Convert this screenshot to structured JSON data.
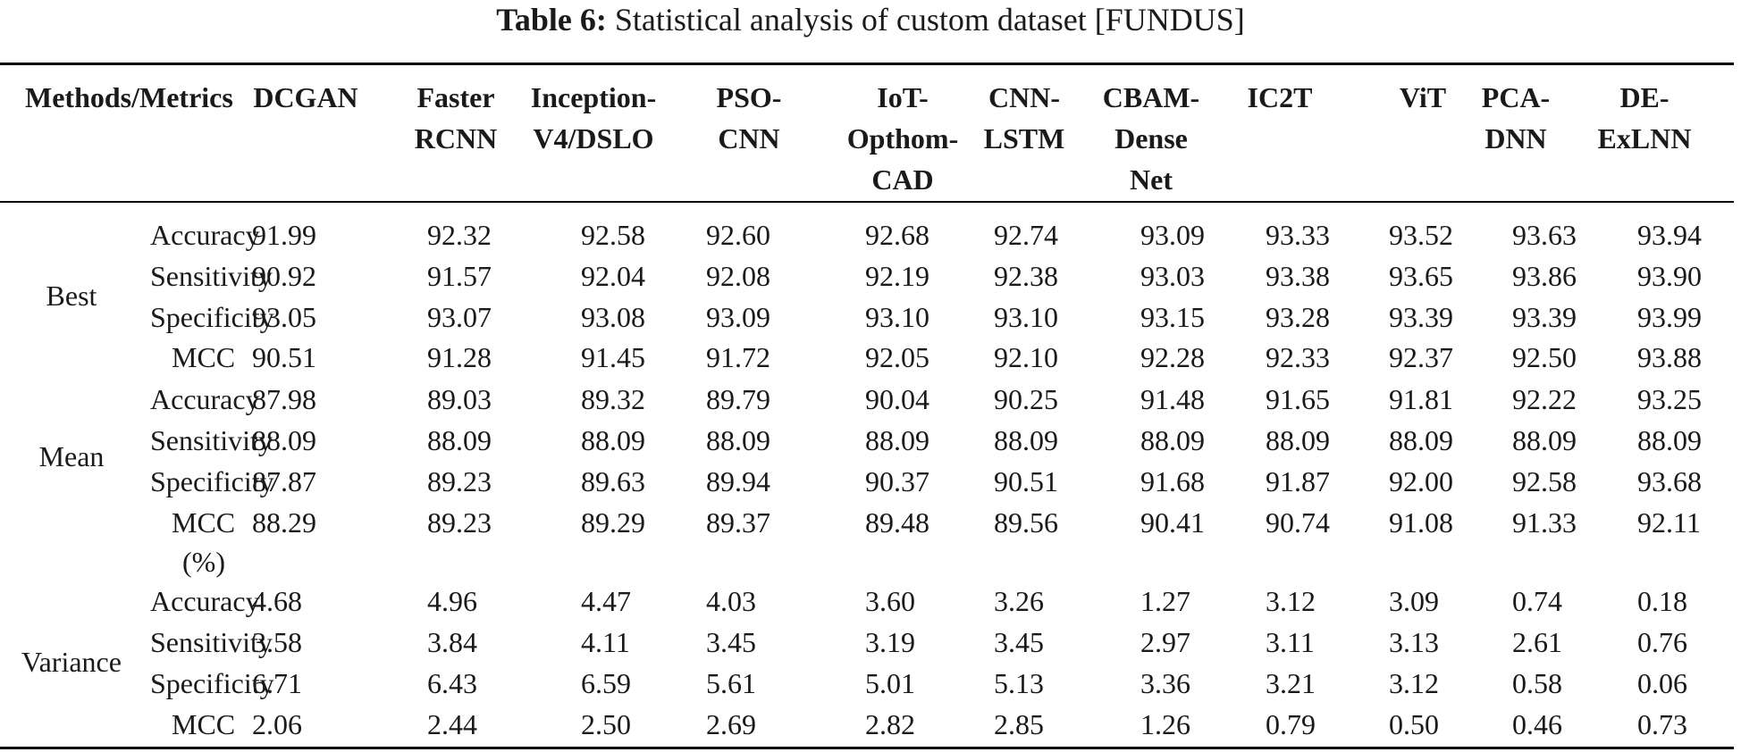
{
  "caption": {
    "label": "Table 6:",
    "text": "Statistical analysis of custom dataset [FUNDUS]"
  },
  "table": {
    "corner_header": "Methods/Metrics",
    "columns": [
      [
        "DCGAN"
      ],
      [
        "Faster",
        "RCNN"
      ],
      [
        "Inception-",
        "V4/DSLO"
      ],
      [
        "PSO-",
        "CNN"
      ],
      [
        "IoT-",
        "Opthom-",
        "CAD"
      ],
      [
        "CNN-",
        "LSTM"
      ],
      [
        "CBAM-",
        "Dense",
        "Net"
      ],
      [
        "IC2T"
      ],
      [
        "ViT"
      ],
      [
        "PCA-",
        "DNN"
      ],
      [
        "DE-",
        "ExLNN"
      ]
    ],
    "groups": [
      {
        "name": "Best",
        "rows": [
          {
            "metric": "Accuracy",
            "values": [
              "91.99",
              "92.32",
              "92.58",
              "92.60",
              "92.68",
              "92.74",
              "93.09",
              "93.33",
              "93.52",
              "93.63",
              "93.94"
            ]
          },
          {
            "metric": "Sensitivity",
            "values": [
              "90.92",
              "91.57",
              "92.04",
              "92.08",
              "92.19",
              "92.38",
              "93.03",
              "93.38",
              "93.65",
              "93.86",
              "93.90"
            ]
          },
          {
            "metric": "Specificity",
            "values": [
              "93.05",
              "93.07",
              "93.08",
              "93.09",
              "93.10",
              "93.10",
              "93.15",
              "93.28",
              "93.39",
              "93.39",
              "93.99"
            ]
          },
          {
            "metric": "MCC",
            "values": [
              "90.51",
              "91.28",
              "91.45",
              "91.72",
              "92.05",
              "92.10",
              "92.28",
              "92.33",
              "92.37",
              "92.50",
              "93.88"
            ]
          }
        ]
      },
      {
        "name": "Mean",
        "rows": [
          {
            "metric": "Accuracy",
            "values": [
              "87.98",
              "89.03",
              "89.32",
              "89.79",
              "90.04",
              "90.25",
              "91.48",
              "91.65",
              "91.81",
              "92.22",
              "93.25"
            ]
          },
          {
            "metric": "Sensitivity",
            "values": [
              "88.09",
              "88.09",
              "88.09",
              "88.09",
              "88.09",
              "88.09",
              "88.09",
              "88.09",
              "88.09",
              "88.09",
              "88.09"
            ]
          },
          {
            "metric": "Specificity",
            "values": [
              "87.87",
              "89.23",
              "89.63",
              "89.94",
              "90.37",
              "90.51",
              "91.68",
              "91.87",
              "92.00",
              "92.58",
              "93.68"
            ]
          },
          {
            "metric": "MCC",
            "metric_line2": "(%)",
            "values": [
              "88.29",
              "89.23",
              "89.29",
              "89.37",
              "89.48",
              "89.56",
              "90.41",
              "90.74",
              "91.08",
              "91.33",
              "92.11"
            ]
          }
        ]
      },
      {
        "name": "Variance",
        "rows": [
          {
            "metric": "Accuracy",
            "values": [
              "4.68",
              "4.96",
              "4.47",
              "4.03",
              "3.60",
              "3.26",
              "1.27",
              "3.12",
              "3.09",
              "0.74",
              "0.18"
            ]
          },
          {
            "metric": "Sensitivity",
            "values": [
              "3.58",
              "3.84",
              "4.11",
              "3.45",
              "3.19",
              "3.45",
              "2.97",
              "3.11",
              "3.13",
              "2.61",
              "0.76"
            ]
          },
          {
            "metric": "Specificity",
            "values": [
              "6.71",
              "6.43",
              "6.59",
              "5.61",
              "5.01",
              "5.13",
              "3.36",
              "3.21",
              "3.12",
              "0.58",
              "0.06"
            ]
          },
          {
            "metric": "MCC",
            "values": [
              "2.06",
              "2.44",
              "2.50",
              "2.69",
              "2.82",
              "2.85",
              "1.26",
              "0.79",
              "0.50",
              "0.46",
              "0.73"
            ]
          }
        ]
      }
    ]
  }
}
